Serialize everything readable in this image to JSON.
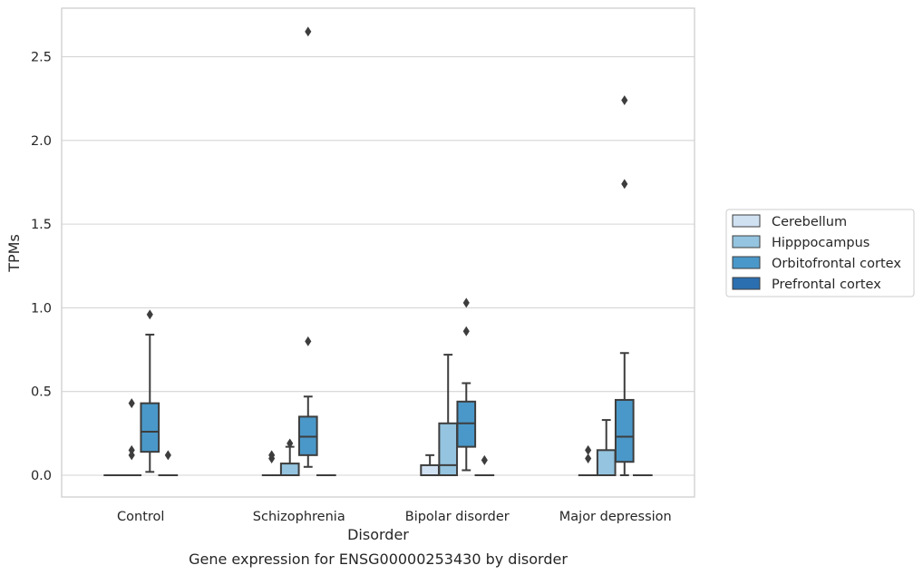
{
  "caption": "Gene expression for ENSG00000253430 by disorder",
  "chart_data": {
    "type": "box",
    "xlabel": "Disorder",
    "ylabel": "TPMs",
    "ylim": [
      -0.13,
      2.79
    ],
    "yticks": [
      0.0,
      0.5,
      1.0,
      1.5,
      2.0,
      2.5
    ],
    "ytick_labels": [
      "0.0",
      "0.5",
      "1.0",
      "1.5",
      "2.0",
      "2.5"
    ],
    "grid": "horizontal",
    "legend_position": "right",
    "categories": [
      "Control",
      "Schizophrenia",
      "Bipolar disorder",
      "Major depression"
    ],
    "series": [
      {
        "name": "Cerebellum",
        "color": "#d0e1f2",
        "boxes": [
          {
            "whisker_low": 0,
            "q1": 0,
            "median": 0,
            "q3": 0,
            "whisker_high": 0,
            "outliers": []
          },
          {
            "whisker_low": 0,
            "q1": 0,
            "median": 0,
            "q3": 0,
            "whisker_high": 0,
            "outliers": [
              0.1,
              0.12
            ]
          },
          {
            "whisker_low": 0,
            "q1": 0,
            "median": 0,
            "q3": 0.06,
            "whisker_high": 0.12,
            "outliers": []
          },
          {
            "whisker_low": 0,
            "q1": 0,
            "median": 0,
            "q3": 0,
            "whisker_high": 0,
            "outliers": [
              0.1,
              0.15
            ]
          }
        ]
      },
      {
        "name": "Hipppocampus",
        "color": "#94c4df",
        "boxes": [
          {
            "whisker_low": 0,
            "q1": 0,
            "median": 0,
            "q3": 0,
            "whisker_high": 0,
            "outliers": [
              0.12,
              0.15,
              0.43
            ]
          },
          {
            "whisker_low": 0,
            "q1": 0,
            "median": 0,
            "q3": 0.07,
            "whisker_high": 0.17,
            "outliers": [
              0.19
            ]
          },
          {
            "whisker_low": 0,
            "q1": 0,
            "median": 0.06,
            "q3": 0.31,
            "whisker_high": 0.72,
            "outliers": []
          },
          {
            "whisker_low": 0,
            "q1": 0,
            "median": 0,
            "q3": 0.15,
            "whisker_high": 0.33,
            "outliers": []
          }
        ]
      },
      {
        "name": "Orbitofrontal cortex",
        "color": "#4a98c9",
        "boxes": [
          {
            "whisker_low": 0.02,
            "q1": 0.14,
            "median": 0.26,
            "q3": 0.43,
            "whisker_high": 0.84,
            "outliers": [
              0.96
            ]
          },
          {
            "whisker_low": 0.05,
            "q1": 0.12,
            "median": 0.23,
            "q3": 0.35,
            "whisker_high": 0.47,
            "outliers": [
              0.8,
              2.65
            ]
          },
          {
            "whisker_low": 0.03,
            "q1": 0.17,
            "median": 0.31,
            "q3": 0.44,
            "whisker_high": 0.55,
            "outliers": [
              0.86,
              1.03
            ]
          },
          {
            "whisker_low": 0,
            "q1": 0.08,
            "median": 0.23,
            "q3": 0.45,
            "whisker_high": 0.73,
            "outliers": [
              1.74,
              2.24
            ]
          }
        ]
      },
      {
        "name": "Prefrontal cortex",
        "color": "#2b6fb0",
        "boxes": [
          {
            "whisker_low": 0,
            "q1": 0,
            "median": 0,
            "q3": 0,
            "whisker_high": 0,
            "outliers": [
              0.12
            ]
          },
          {
            "whisker_low": 0,
            "q1": 0,
            "median": 0,
            "q3": 0,
            "whisker_high": 0,
            "outliers": []
          },
          {
            "whisker_low": 0,
            "q1": 0,
            "median": 0,
            "q3": 0,
            "whisker_high": 0,
            "outliers": [
              0.09
            ]
          },
          {
            "whisker_low": 0,
            "q1": 0,
            "median": 0,
            "q3": 0,
            "whisker_high": 0,
            "outliers": []
          }
        ]
      }
    ]
  }
}
